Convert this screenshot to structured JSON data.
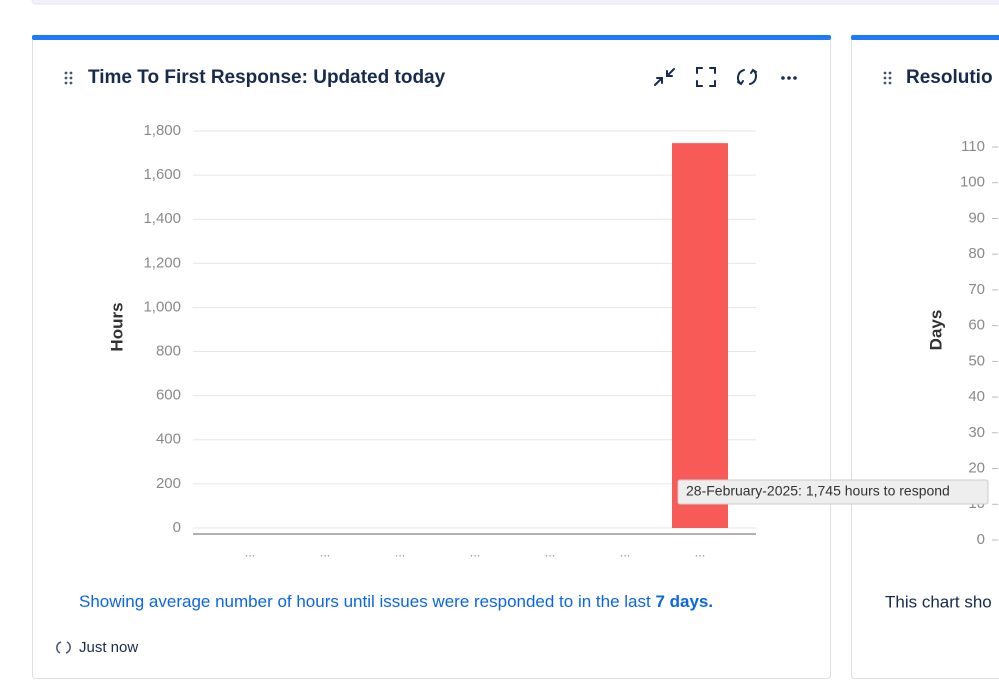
{
  "gadgets": [
    {
      "title": "Time To First Response: Updated today",
      "description": {
        "text": "Showing average number of hours until issues were responded to in the last ",
        "emphasis": "7 days."
      },
      "refreshed": "Just now"
    },
    {
      "title": "Resolutio",
      "description": {
        "text": "This chart sho"
      }
    }
  ],
  "chart_data": [
    {
      "type": "bar",
      "y_label": "Hours",
      "categories": [
        "...",
        "...",
        "...",
        "...",
        "...",
        "...",
        "..."
      ],
      "values": [
        0,
        0,
        0,
        0,
        0,
        0,
        1745
      ],
      "color": "#f85a57",
      "ylim": [
        0,
        1800
      ],
      "yticks": [
        0,
        200,
        400,
        600,
        800,
        {
          "value": 1000,
          "label": "1,000"
        },
        {
          "value": 1200,
          "label": "1,200"
        },
        {
          "value": 1400,
          "label": "1,400"
        },
        {
          "value": 1600,
          "label": "1,600"
        },
        {
          "value": 1800,
          "label": "1,800"
        }
      ],
      "grid": true,
      "tooltip": "28-February-2025: 1,745 hours to respond"
    },
    {
      "type": "bar",
      "y_label": "Days",
      "ylim": [
        0,
        110
      ],
      "yticks": [
        0,
        10,
        20,
        30,
        40,
        50,
        60,
        70,
        80,
        90,
        100,
        110
      ],
      "grid": false
    }
  ]
}
